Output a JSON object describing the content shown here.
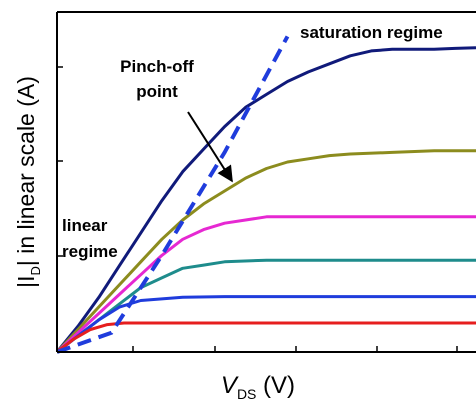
{
  "chart_data": {
    "type": "line",
    "title": "",
    "xlabel": {
      "main": "V",
      "sub": "DS",
      "unit": " (V)"
    },
    "ylabel": {
      "pre": "|I",
      "sub": "D",
      "post": "| in linear scale (A)"
    },
    "xlim": [
      0,
      1
    ],
    "ylim": [
      0,
      1
    ],
    "grid": false,
    "tick_labels_shown": false,
    "series": [
      {
        "color": "#101a7a",
        "values": [
          [
            0,
            0
          ],
          [
            0.05,
            0.08
          ],
          [
            0.1,
            0.17
          ],
          [
            0.15,
            0.27
          ],
          [
            0.2,
            0.37
          ],
          [
            0.25,
            0.47
          ],
          [
            0.3,
            0.56
          ],
          [
            0.35,
            0.63
          ],
          [
            0.4,
            0.7
          ],
          [
            0.45,
            0.76
          ],
          [
            0.5,
            0.8
          ],
          [
            0.55,
            0.84
          ],
          [
            0.6,
            0.87
          ],
          [
            0.65,
            0.895
          ],
          [
            0.7,
            0.92
          ],
          [
            0.75,
            0.935
          ],
          [
            0.8,
            0.94
          ],
          [
            0.85,
            0.94
          ],
          [
            0.9,
            0.94
          ],
          [
            0.95,
            0.943
          ],
          [
            1.0,
            0.945
          ]
        ]
      },
      {
        "color": "#8c8c1e",
        "values": [
          [
            0,
            0
          ],
          [
            0.05,
            0.07
          ],
          [
            0.1,
            0.14
          ],
          [
            0.15,
            0.21
          ],
          [
            0.2,
            0.28
          ],
          [
            0.25,
            0.35
          ],
          [
            0.3,
            0.41
          ],
          [
            0.35,
            0.46
          ],
          [
            0.4,
            0.5
          ],
          [
            0.45,
            0.54
          ],
          [
            0.5,
            0.57
          ],
          [
            0.55,
            0.59
          ],
          [
            0.6,
            0.6
          ],
          [
            0.65,
            0.61
          ],
          [
            0.7,
            0.615
          ],
          [
            0.8,
            0.62
          ],
          [
            0.9,
            0.625
          ],
          [
            1.0,
            0.625
          ]
        ]
      },
      {
        "color": "#e628d2",
        "values": [
          [
            0,
            0
          ],
          [
            0.05,
            0.06
          ],
          [
            0.1,
            0.12
          ],
          [
            0.15,
            0.18
          ],
          [
            0.2,
            0.24
          ],
          [
            0.25,
            0.3
          ],
          [
            0.3,
            0.35
          ],
          [
            0.35,
            0.38
          ],
          [
            0.4,
            0.4
          ],
          [
            0.45,
            0.41
          ],
          [
            0.5,
            0.42
          ],
          [
            0.6,
            0.42
          ],
          [
            0.7,
            0.42
          ],
          [
            0.8,
            0.42
          ],
          [
            0.9,
            0.42
          ],
          [
            1.0,
            0.42
          ]
        ]
      },
      {
        "color": "#1e8c8c",
        "values": [
          [
            0,
            0
          ],
          [
            0.05,
            0.05
          ],
          [
            0.1,
            0.1
          ],
          [
            0.15,
            0.15
          ],
          [
            0.2,
            0.2
          ],
          [
            0.25,
            0.23
          ],
          [
            0.3,
            0.26
          ],
          [
            0.35,
            0.27
          ],
          [
            0.4,
            0.28
          ],
          [
            0.5,
            0.285
          ],
          [
            0.6,
            0.285
          ],
          [
            0.7,
            0.285
          ],
          [
            0.8,
            0.285
          ],
          [
            0.9,
            0.285
          ],
          [
            1.0,
            0.285
          ]
        ]
      },
      {
        "color": "#1f3cdc",
        "values": [
          [
            0,
            0
          ],
          [
            0.05,
            0.05
          ],
          [
            0.1,
            0.1
          ],
          [
            0.15,
            0.14
          ],
          [
            0.2,
            0.16
          ],
          [
            0.25,
            0.165
          ],
          [
            0.3,
            0.17
          ],
          [
            0.4,
            0.172
          ],
          [
            0.5,
            0.172
          ],
          [
            0.6,
            0.172
          ],
          [
            0.7,
            0.172
          ],
          [
            0.8,
            0.172
          ],
          [
            0.9,
            0.172
          ],
          [
            1.0,
            0.172
          ]
        ]
      },
      {
        "color": "#e61e1e",
        "values": [
          [
            0,
            0
          ],
          [
            0.04,
            0.04
          ],
          [
            0.08,
            0.07
          ],
          [
            0.12,
            0.085
          ],
          [
            0.16,
            0.09
          ],
          [
            0.2,
            0.09
          ],
          [
            0.3,
            0.09
          ],
          [
            0.4,
            0.09
          ],
          [
            0.5,
            0.09
          ],
          [
            0.6,
            0.09
          ],
          [
            0.7,
            0.09
          ],
          [
            0.8,
            0.09
          ],
          [
            0.9,
            0.09
          ],
          [
            1.0,
            0.09
          ]
        ]
      }
    ],
    "pinch_off_line": {
      "style": "dashed",
      "color": "#1f3cdc",
      "values": [
        [
          0,
          0
        ],
        [
          0.13,
          0.06
        ],
        [
          0.25,
          0.3
        ],
        [
          0.4,
          0.62
        ],
        [
          0.55,
          0.98
        ]
      ]
    },
    "annotations": [
      {
        "id": "saturation",
        "text": "saturation regime"
      },
      {
        "id": "pinchoff_1",
        "text": "Pinch-off"
      },
      {
        "id": "pinchoff_2",
        "text": "point"
      },
      {
        "id": "linear_1",
        "text": "linear"
      },
      {
        "id": "linear_2",
        "text": "regime"
      }
    ]
  }
}
